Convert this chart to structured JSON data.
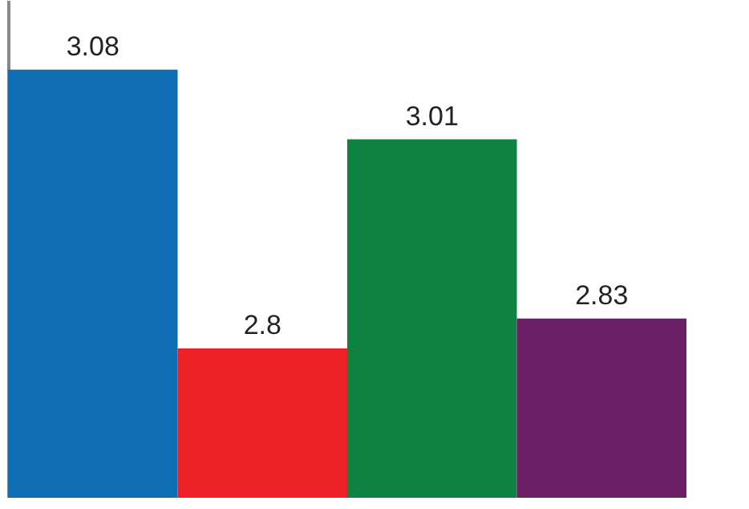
{
  "chart_data": {
    "type": "bar",
    "categories": [
      null,
      null,
      null,
      null
    ],
    "values": [
      3.08,
      2.8,
      3.01,
      2.83
    ],
    "colors": [
      "#0f6db3",
      "#ee2027",
      "#0e8341",
      "#6a1f66"
    ],
    "ylim": [
      2.65,
      3.15
    ],
    "data_labels": true
  }
}
